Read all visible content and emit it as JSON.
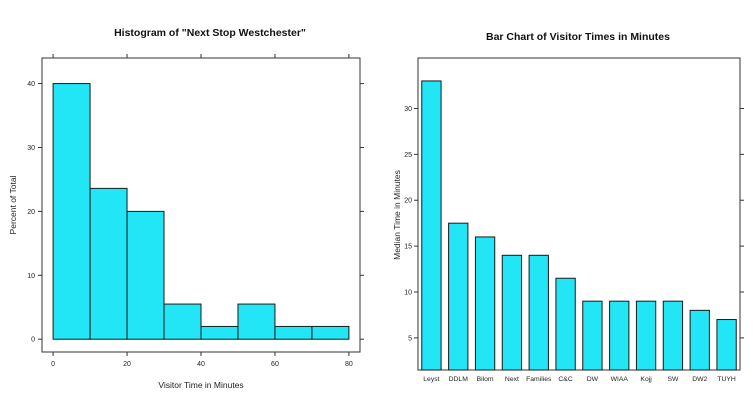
{
  "colors": {
    "bar_fill": "#22e5f5",
    "bar_stroke": "#1a1a1a",
    "frame": "#333333"
  },
  "chart_data": [
    {
      "type": "bar",
      "subtype": "histogram",
      "title": "Histogram of  \"Next Stop Westchester\"",
      "xlabel": "Visitor Time in Minutes",
      "ylabel": "Percent of Total",
      "xlim": [
        -3,
        83
      ],
      "ylim": [
        -2,
        44
      ],
      "x_ticks": [
        0,
        20,
        40,
        60,
        80
      ],
      "y_ticks": [
        0,
        10,
        20,
        30,
        40
      ],
      "bins": [
        {
          "from": 0,
          "to": 10,
          "value": 40
        },
        {
          "from": 10,
          "to": 20,
          "value": 23.6
        },
        {
          "from": 20,
          "to": 30,
          "value": 20
        },
        {
          "from": 30,
          "to": 40,
          "value": 5.5
        },
        {
          "from": 40,
          "to": 50,
          "value": 2
        },
        {
          "from": 50,
          "to": 60,
          "value": 5.5
        },
        {
          "from": 60,
          "to": 70,
          "value": 2
        },
        {
          "from": 70,
          "to": 80,
          "value": 2
        }
      ]
    },
    {
      "type": "bar",
      "title": "Bar Chart of Visitor Times in Minutes",
      "xlabel": "",
      "ylabel": "Median Time in Minutes",
      "ylim": [
        1.5,
        35.5
      ],
      "y_ticks": [
        5,
        10,
        15,
        20,
        25,
        30
      ],
      "categories": [
        "Leyst",
        "DDLM",
        "Bilom",
        "Next",
        "Families",
        "C&C",
        "DW",
        "WIAA",
        "Kojj",
        "SW",
        "DW2",
        "TUYH"
      ],
      "values": [
        33,
        17.5,
        16,
        14,
        14,
        11.5,
        9,
        9,
        9,
        9,
        8,
        7
      ]
    }
  ]
}
